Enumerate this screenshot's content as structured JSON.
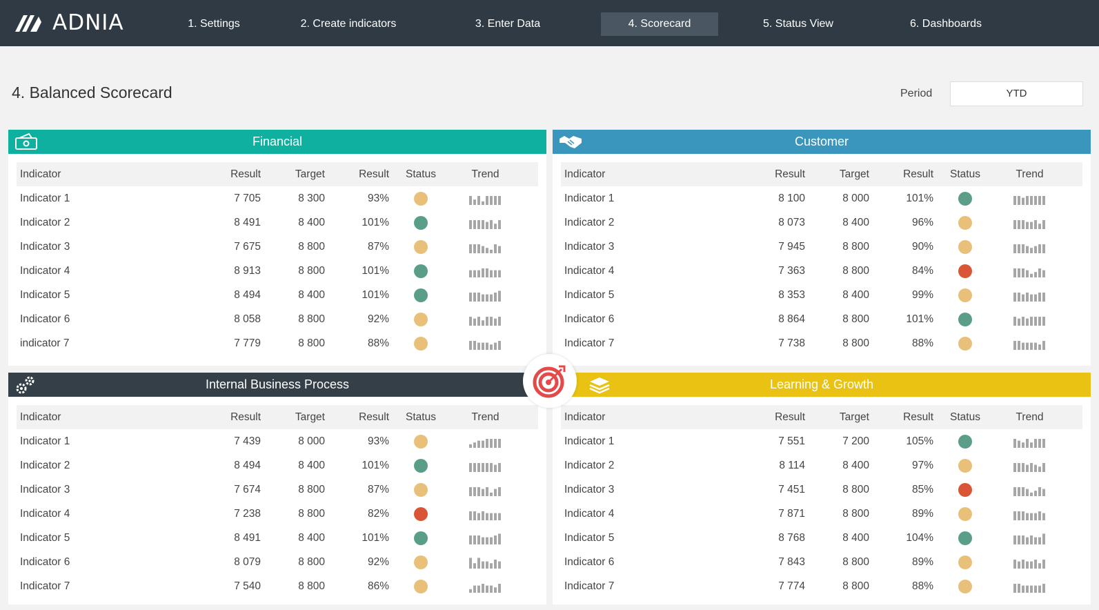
{
  "app": {
    "logo_text": "ADNIA"
  },
  "nav": [
    {
      "label": "1. Settings"
    },
    {
      "label": "2. Create indicators"
    },
    {
      "label": "3. Enter Data"
    },
    {
      "label": "4. Scorecard"
    },
    {
      "label": "5. Status View"
    },
    {
      "label": "6. Dashboards"
    }
  ],
  "page": {
    "title": "4. Balanced Scorecard",
    "period_label": "Period",
    "period_value": "YTD"
  },
  "columns": {
    "indicator": "Indicator",
    "result": "Result",
    "target": "Target",
    "result_pct": "Result",
    "status": "Status",
    "trend": "Trend"
  },
  "colors": {
    "green": "#5a9e8a",
    "amber": "#e8c07a",
    "red": "#d95536",
    "financial": "#0fb0a0",
    "customer": "#3a96bd",
    "internal": "#343f47",
    "learning": "#e9c213"
  },
  "panels": {
    "financial": {
      "title": "Financial",
      "icon": "money-icon",
      "rows": [
        {
          "name": "Indicator 1",
          "result": "7 705",
          "target": "8 300",
          "pct": "93%",
          "status": "amber",
          "trend": [
            5,
            3,
            5,
            2,
            5,
            5,
            5,
            5
          ]
        },
        {
          "name": "Indicator 2",
          "result": "8 491",
          "target": "8 400",
          "pct": "101%",
          "status": "green",
          "trend": [
            5,
            5,
            5,
            5,
            4,
            5,
            3,
            5
          ]
        },
        {
          "name": "Indicator 3",
          "result": "7 675",
          "target": "8 800",
          "pct": "87%",
          "status": "amber",
          "trend": [
            5,
            5,
            5,
            4,
            3,
            2,
            5,
            4
          ]
        },
        {
          "name": "Indicator 4",
          "result": "8 913",
          "target": "8 800",
          "pct": "101%",
          "status": "green",
          "trend": [
            4,
            4,
            4,
            5,
            5,
            4,
            4,
            4
          ]
        },
        {
          "name": "Indicator 5",
          "result": "8 494",
          "target": "8 400",
          "pct": "101%",
          "status": "green",
          "trend": [
            5,
            5,
            5,
            4,
            4,
            4,
            5,
            6
          ]
        },
        {
          "name": "Indicator 6",
          "result": "8 058",
          "target": "8 800",
          "pct": "92%",
          "status": "amber",
          "trend": [
            5,
            4,
            5,
            3,
            5,
            5,
            4,
            5
          ]
        },
        {
          "name": "indicator 7",
          "result": "7 779",
          "target": "8 800",
          "pct": "88%",
          "status": "amber",
          "trend": [
            5,
            5,
            4,
            4,
            4,
            3,
            4,
            5
          ]
        }
      ]
    },
    "customer": {
      "title": "Customer",
      "icon": "handshake-icon",
      "rows": [
        {
          "name": "Indicator 1",
          "result": "8 100",
          "target": "8 000",
          "pct": "101%",
          "status": "green",
          "trend": [
            5,
            5,
            4,
            5,
            5,
            5,
            5,
            5
          ]
        },
        {
          "name": "Indicator 2",
          "result": "8 073",
          "target": "8 400",
          "pct": "96%",
          "status": "amber",
          "trend": [
            5,
            5,
            5,
            4,
            4,
            5,
            3,
            5
          ]
        },
        {
          "name": "Indicator 3",
          "result": "7 945",
          "target": "8 800",
          "pct": "90%",
          "status": "amber",
          "trend": [
            5,
            5,
            5,
            4,
            3,
            4,
            5,
            5
          ]
        },
        {
          "name": "Indicator 4",
          "result": "7 363",
          "target": "8 800",
          "pct": "84%",
          "status": "red",
          "trend": [
            5,
            5,
            5,
            4,
            2,
            3,
            5,
            4
          ]
        },
        {
          "name": "Indicator 5",
          "result": "8 353",
          "target": "8 400",
          "pct": "99%",
          "status": "amber",
          "trend": [
            5,
            5,
            4,
            5,
            4,
            4,
            5,
            5
          ]
        },
        {
          "name": "Indicator 6",
          "result": "8 864",
          "target": "8 800",
          "pct": "101%",
          "status": "green",
          "trend": [
            5,
            4,
            5,
            4,
            5,
            5,
            5,
            5
          ]
        },
        {
          "name": "Indicator 7",
          "result": "7 738",
          "target": "8 800",
          "pct": "88%",
          "status": "amber",
          "trend": [
            5,
            5,
            4,
            4,
            4,
            4,
            3,
            5
          ]
        }
      ]
    },
    "internal": {
      "title": "Internal Business Process",
      "icon": "gears-icon",
      "rows": [
        {
          "name": "Indicator 1",
          "result": "7 439",
          "target": "8 000",
          "pct": "93%",
          "status": "amber",
          "trend": [
            2,
            3,
            4,
            4,
            5,
            5,
            5,
            5
          ]
        },
        {
          "name": "Indicator 2",
          "result": "8 494",
          "target": "8 400",
          "pct": "101%",
          "status": "green",
          "trend": [
            5,
            5,
            5,
            5,
            5,
            5,
            4,
            5
          ]
        },
        {
          "name": "Indicator 3",
          "result": "7 674",
          "target": "8 800",
          "pct": "87%",
          "status": "amber",
          "trend": [
            5,
            5,
            5,
            4,
            5,
            2,
            4,
            5
          ]
        },
        {
          "name": "Indicator 4",
          "result": "7 238",
          "target": "8 800",
          "pct": "82%",
          "status": "red",
          "trend": [
            5,
            5,
            4,
            5,
            4,
            4,
            4,
            4
          ]
        },
        {
          "name": "Indicator 5",
          "result": "8 491",
          "target": "8 400",
          "pct": "101%",
          "status": "green",
          "trend": [
            5,
            5,
            5,
            4,
            4,
            4,
            5,
            6
          ]
        },
        {
          "name": "Indicator 6",
          "result": "8 079",
          "target": "8 800",
          "pct": "92%",
          "status": "amber",
          "trend": [
            6,
            3,
            6,
            4,
            4,
            3,
            5,
            4
          ]
        },
        {
          "name": "Indicator 7",
          "result": "7 540",
          "target": "8 800",
          "pct": "86%",
          "status": "amber",
          "trend": [
            2,
            4,
            4,
            5,
            4,
            4,
            3,
            5
          ]
        }
      ]
    },
    "learning": {
      "title": "Learning & Growth",
      "icon": "books-icon",
      "rows": [
        {
          "name": "Indicator 1",
          "result": "7 551",
          "target": "7 200",
          "pct": "105%",
          "status": "green",
          "trend": [
            5,
            4,
            3,
            5,
            3,
            5,
            5,
            5
          ]
        },
        {
          "name": "Indicator 2",
          "result": "8 114",
          "target": "8 400",
          "pct": "97%",
          "status": "amber",
          "trend": [
            5,
            5,
            5,
            4,
            5,
            4,
            3,
            5
          ]
        },
        {
          "name": "Indicator 3",
          "result": "7 451",
          "target": "8 800",
          "pct": "85%",
          "status": "red",
          "trend": [
            5,
            5,
            5,
            4,
            2,
            3,
            5,
            4
          ]
        },
        {
          "name": "Indicator 4",
          "result": "7 871",
          "target": "8 800",
          "pct": "89%",
          "status": "amber",
          "trend": [
            5,
            5,
            5,
            4,
            4,
            4,
            5,
            4
          ]
        },
        {
          "name": "Indicator 5",
          "result": "8 768",
          "target": "8 400",
          "pct": "104%",
          "status": "green",
          "trend": [
            5,
            5,
            5,
            4,
            5,
            4,
            4,
            6
          ]
        },
        {
          "name": "Indicator 6",
          "result": "7 843",
          "target": "8 800",
          "pct": "89%",
          "status": "amber",
          "trend": [
            5,
            4,
            5,
            4,
            4,
            5,
            3,
            5
          ]
        },
        {
          "name": "Indicator 7",
          "result": "7 774",
          "target": "8 800",
          "pct": "88%",
          "status": "amber",
          "trend": [
            5,
            5,
            4,
            4,
            4,
            4,
            4,
            5
          ]
        }
      ]
    }
  }
}
